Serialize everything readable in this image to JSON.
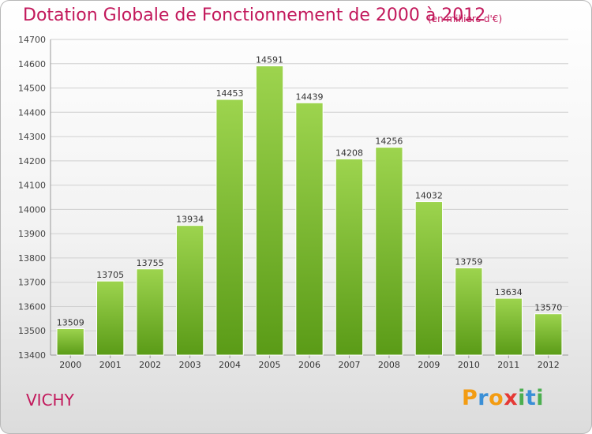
{
  "title": "Dotation Globale de Fonctionnement de 2000 à 2012",
  "subtitle": "(en milliers d'€)",
  "city": "VICHY",
  "logo": {
    "text": "Proxiti",
    "letter_colors": [
      "#f39c12",
      "#3a8fd6",
      "#f39c12",
      "#e53935",
      "#4caf50",
      "#3a8fd6",
      "#4caf50"
    ]
  },
  "colors": {
    "title": "#c2185b",
    "bar_top": "#9dd44e",
    "bar_bottom": "#5a9b17",
    "grid": "#d0d0d0"
  },
  "chart_data": {
    "type": "bar",
    "title": "Dotation Globale de Fonctionnement de 2000 à 2012",
    "subtitle": "(en milliers d'€)",
    "categories": [
      "2000",
      "2001",
      "2002",
      "2003",
      "2004",
      "2005",
      "2006",
      "2007",
      "2008",
      "2009",
      "2010",
      "2011",
      "2012"
    ],
    "values": [
      13509,
      13705,
      13755,
      13934,
      14453,
      14591,
      14439,
      14208,
      14256,
      14032,
      13759,
      13634,
      13570
    ],
    "ylim": [
      13400,
      14700
    ],
    "yticks": [
      13400,
      13500,
      13600,
      13700,
      13800,
      13900,
      14000,
      14100,
      14200,
      14300,
      14400,
      14500,
      14600,
      14700
    ],
    "grid": true,
    "legend": "none"
  }
}
